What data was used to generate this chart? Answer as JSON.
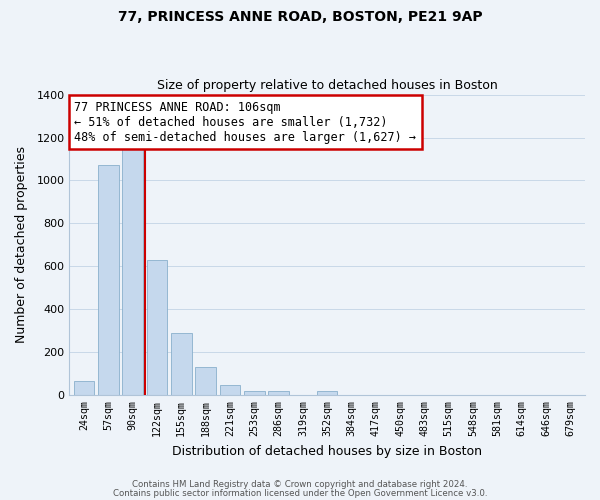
{
  "title": "77, PRINCESS ANNE ROAD, BOSTON, PE21 9AP",
  "subtitle": "Size of property relative to detached houses in Boston",
  "xlabel": "Distribution of detached houses by size in Boston",
  "ylabel": "Number of detached properties",
  "bar_labels": [
    "24sqm",
    "57sqm",
    "90sqm",
    "122sqm",
    "155sqm",
    "188sqm",
    "221sqm",
    "253sqm",
    "286sqm",
    "319sqm",
    "352sqm",
    "384sqm",
    "417sqm",
    "450sqm",
    "483sqm",
    "515sqm",
    "548sqm",
    "581sqm",
    "614sqm",
    "646sqm",
    "679sqm"
  ],
  "bar_values": [
    65,
    1070,
    1160,
    630,
    290,
    130,
    48,
    20,
    20,
    0,
    18,
    0,
    0,
    0,
    0,
    0,
    0,
    0,
    0,
    0,
    0
  ],
  "bar_color": "#c5d8ed",
  "bar_edge_color": "#8ab0cc",
  "vline_x": 2.5,
  "vline_color": "#cc0000",
  "ylim": [
    0,
    1400
  ],
  "yticks": [
    0,
    200,
    400,
    600,
    800,
    1000,
    1200,
    1400
  ],
  "annotation_box_text": "77 PRINCESS ANNE ROAD: 106sqm\n← 51% of detached houses are smaller (1,732)\n48% of semi-detached houses are larger (1,627) →",
  "footer_line1": "Contains HM Land Registry data © Crown copyright and database right 2024.",
  "footer_line2": "Contains public sector information licensed under the Open Government Licence v3.0.",
  "grid_color": "#c8d8e8",
  "background_color": "#eef3f9"
}
